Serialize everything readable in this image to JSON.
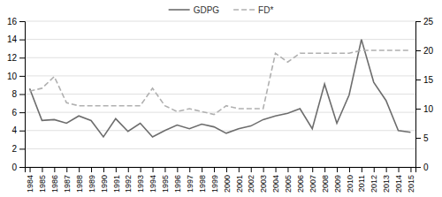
{
  "chart_data": {
    "type": "line",
    "x": [
      1984,
      1985,
      1986,
      1987,
      1988,
      1989,
      1990,
      1991,
      1992,
      1993,
      1994,
      1995,
      1996,
      1997,
      1998,
      1999,
      2000,
      2001,
      2002,
      2003,
      2004,
      2005,
      2006,
      2007,
      2008,
      2009,
      2010,
      2011,
      2012,
      2013,
      2014,
      2015
    ],
    "xlim": [
      1983.6,
      2015.4
    ],
    "xticks": [
      1984,
      1985,
      1986,
      1987,
      1988,
      1989,
      1990,
      1991,
      1992,
      1993,
      1994,
      1995,
      1996,
      1997,
      1998,
      1999,
      2000,
      2001,
      2002,
      2003,
      2004,
      2005,
      2006,
      2007,
      2008,
      2009,
      2010,
      2011,
      2012,
      2013,
      2014,
      2015
    ],
    "ylim": [
      0,
      16
    ],
    "yticks": [
      0,
      2,
      4,
      6,
      8,
      10,
      12,
      14,
      16
    ],
    "y2lim": [
      0,
      25
    ],
    "y2ticks": [
      0,
      5,
      10,
      15,
      20,
      25
    ],
    "grid": true,
    "legend": "top",
    "series": [
      {
        "name": "GDPG",
        "color": "#6d6d6d",
        "line_style": "solid",
        "values": [
          8.6,
          5.1,
          5.2,
          4.8,
          5.6,
          5.1,
          3.3,
          5.3,
          3.9,
          4.8,
          3.3,
          4.0,
          4.6,
          4.2,
          4.7,
          4.4,
          3.7,
          4.2,
          4.5,
          5.2,
          5.6,
          5.9,
          6.4,
          4.2,
          9.1,
          4.8,
          7.9,
          14.0,
          9.3,
          7.3,
          4.0,
          3.8
        ]
      },
      {
        "name": "FD*",
        "color": "#b0b0b0",
        "line_style": "dashed",
        "axis": "y2",
        "values": [
          13.0,
          13.5,
          15.5,
          11.0,
          10.5,
          10.5,
          10.5,
          10.5,
          10.5,
          10.5,
          13.5,
          10.5,
          9.5,
          10.0,
          9.5,
          9.0,
          10.5,
          10.0,
          10.0,
          10.0,
          19.5,
          18.0,
          19.5,
          19.5,
          19.5,
          19.5,
          19.5,
          20.0,
          20.0,
          20.0,
          20.0,
          20.0
        ]
      }
    ]
  }
}
